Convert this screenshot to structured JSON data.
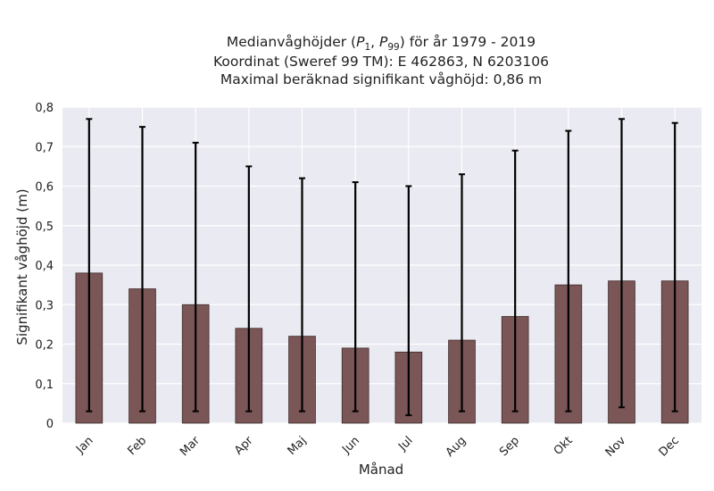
{
  "chart_data": {
    "type": "bar",
    "title_lines": [
      "Medianvåghöjder (P1,P99) för år 1979 - 2019",
      "Koordinat (Sweref 99 TM): E 462863, N 6203106",
      "Maximal beräknad signifikant våghöjd: 0,86 m"
    ],
    "xlabel": "Månad",
    "ylabel": "Signifikant våghöjd (m)",
    "categories": [
      "Jan",
      "Feb",
      "Mar",
      "Apr",
      "Maj",
      "Jun",
      "Jul",
      "Aug",
      "Sep",
      "Okt",
      "Nov",
      "Dec"
    ],
    "series": [
      {
        "values": [
          0.38,
          0.34,
          0.3,
          0.24,
          0.22,
          0.19,
          0.18,
          0.21,
          0.27,
          0.35,
          0.36,
          0.36
        ],
        "p1": [
          0.03,
          0.03,
          0.03,
          0.03,
          0.03,
          0.03,
          0.02,
          0.03,
          0.03,
          0.03,
          0.04,
          0.03
        ],
        "p99": [
          0.77,
          0.75,
          0.71,
          0.65,
          0.62,
          0.61,
          0.6,
          0.63,
          0.69,
          0.74,
          0.77,
          0.76
        ]
      }
    ],
    "ylim": [
      0,
      0.8
    ],
    "yticks": [
      0,
      0.1,
      0.2,
      0.3,
      0.4,
      0.5,
      0.6,
      0.7,
      0.8
    ],
    "ytick_labels": [
      "0",
      "0,1",
      "0,2",
      "0,3",
      "0,4",
      "0,5",
      "0,6",
      "0,7",
      "0,8"
    ],
    "grid": true,
    "colors": {
      "bar_fill": "#7a5656",
      "bar_edge": "#3d2a2a",
      "errorbar": "#000000",
      "plot_background": "#eaeaf2",
      "grid": "#ffffff"
    }
  }
}
